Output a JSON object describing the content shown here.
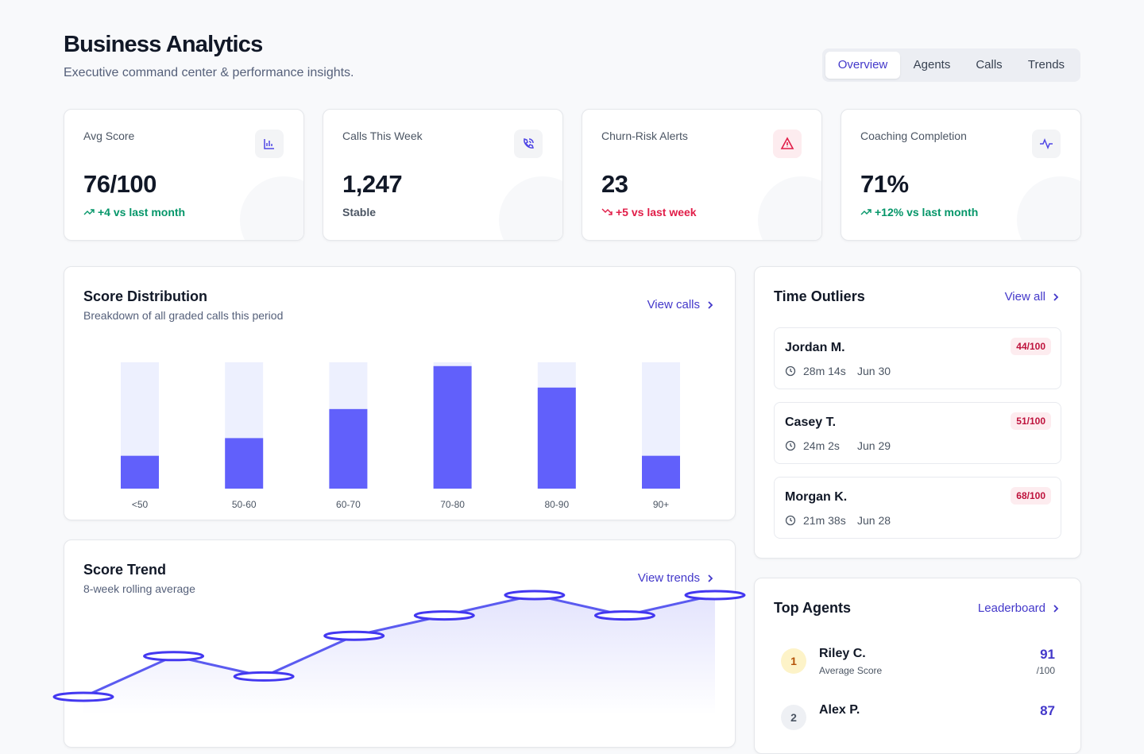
{
  "header": {
    "title": "Business Analytics",
    "subtitle": "Executive command center & performance insights."
  },
  "tabs": {
    "items": [
      "Overview",
      "Agents",
      "Calls",
      "Trends"
    ],
    "active": 0
  },
  "kpis": [
    {
      "label": "Avg Score",
      "value": "76/100",
      "delta": "+4 vs last month",
      "trend": "up"
    },
    {
      "label": "Calls This Week",
      "value": "1,247",
      "delta": "Stable",
      "trend": "flat"
    },
    {
      "label": "Churn-Risk Alerts",
      "value": "23",
      "delta": "+5 vs last week",
      "trend": "down"
    },
    {
      "label": "Coaching Completion",
      "value": "71%",
      "delta": "+12% vs last month",
      "trend": "up"
    }
  ],
  "chart_links": [
    "View calls",
    "View trends"
  ],
  "chart_data": [
    {
      "type": "bar",
      "title": "Score Distribution",
      "subtitle": "Breakdown of all graded calls this period",
      "categories": [
        "<50",
        "50-60",
        "60-70",
        "70-80",
        "80-90",
        "90+"
      ],
      "values": [
        26,
        40,
        63,
        97,
        80,
        26
      ],
      "ylim": [
        0,
        100
      ],
      "color": "#6160fb",
      "track_color": "#edf0fe"
    },
    {
      "type": "line",
      "title": "Score Trend",
      "subtitle": "8-week rolling average",
      "categories": [
        null,
        null,
        null,
        null,
        null,
        null,
        null,
        null
      ],
      "values": [
        68,
        72,
        70,
        74,
        76,
        78,
        76,
        78
      ],
      "ylim": [
        60,
        80
      ],
      "color": "#5b5bf0"
    }
  ],
  "time_outliers": {
    "title": "Time Outliers",
    "link": "View all",
    "items": [
      {
        "name": "Jordan M.",
        "score": "44/100",
        "duration": "28m 14s",
        "date": "Jun 30"
      },
      {
        "name": "Casey T.",
        "score": "51/100",
        "duration": "24m 2s",
        "date": "Jun 29"
      },
      {
        "name": "Morgan K.",
        "score": "68/100",
        "duration": "21m 38s",
        "date": "Jun 28"
      }
    ]
  },
  "top_agents": {
    "title": "Top Agents",
    "link": "Leaderboard",
    "items": [
      {
        "rank": 1,
        "name": "Riley C.",
        "caption": "Average Score",
        "score": 91,
        "unit": "/100"
      },
      {
        "rank": 2,
        "name": "Alex P.",
        "score": 87
      }
    ]
  }
}
